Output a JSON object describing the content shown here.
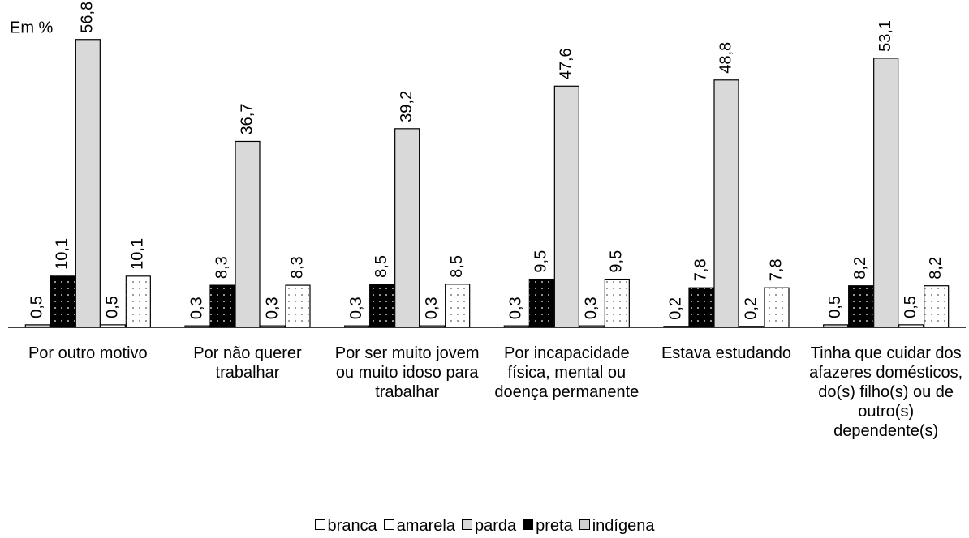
{
  "chart_data": {
    "type": "bar",
    "subtitle": "Em %",
    "categories": [
      "Por outro motivo",
      "Por não querer trabalhar",
      "Por ser muito jovem ou muito idoso para trabalhar",
      "Por incapacidade física, mental ou doença permanente",
      "Estava estudando",
      "Tinha que cuidar dos afazeres domésticos, do(s) filho(s) ou de outro(s) dependente(s)"
    ],
    "series": [
      {
        "name": "indígena",
        "color": "#cfcfcf",
        "dotted": false,
        "values": [
          0.5,
          0.3,
          0.3,
          0.3,
          0.2,
          0.5
        ],
        "value_labels": [
          "0,5",
          "0,3",
          "0,3",
          "0,3",
          "0,2",
          "0,5"
        ]
      },
      {
        "name": "preta",
        "color": "#000000",
        "dotted": true,
        "values": [
          10.1,
          8.3,
          8.5,
          9.5,
          7.8,
          8.2
        ],
        "value_labels": [
          "10,1",
          "8,3",
          "8,5",
          "9,5",
          "7,8",
          "8,2"
        ]
      },
      {
        "name": "parda",
        "color": "#d9d9d9",
        "dotted": false,
        "values": [
          56.8,
          36.7,
          39.2,
          47.6,
          48.8,
          53.1
        ],
        "value_labels": [
          "56,8",
          "36,7",
          "39,2",
          "47,6",
          "48,8",
          "53,1"
        ]
      },
      {
        "name": "amarela",
        "color": "#ffffff",
        "dotted": false,
        "values": [
          0.5,
          0.3,
          0.3,
          0.3,
          0.2,
          0.5
        ],
        "value_labels": [
          "0,5",
          "0,3",
          "0,3",
          "0,3",
          "0,2",
          "0,5"
        ]
      },
      {
        "name": "branca",
        "color": "#ffffff",
        "dotted": true,
        "values": [
          10.1,
          8.3,
          8.5,
          9.5,
          7.8,
          8.2
        ],
        "value_labels": [
          "10,1",
          "8,3",
          "8,5",
          "9,5",
          "7,8",
          "8,2"
        ]
      }
    ],
    "ylim": [
      0,
      55
    ],
    "legend": "bottom"
  }
}
